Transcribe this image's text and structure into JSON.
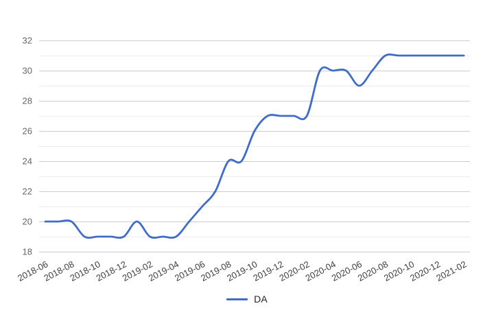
{
  "chart_data": {
    "type": "line",
    "title": "",
    "xlabel": "",
    "ylabel": "",
    "curve": "smooth",
    "grid": "on",
    "legend_position": "bottom-center",
    "ylim": [
      18,
      32
    ],
    "yticks_major": [
      18,
      20,
      22,
      24,
      26,
      28,
      30,
      32
    ],
    "yticks_minor": [
      19,
      21,
      23,
      25,
      27,
      29,
      31
    ],
    "xtick_labels": [
      "2018-06",
      "2018-08",
      "2018-10",
      "2018-12",
      "2019-02",
      "2019-04",
      "2019-06",
      "2019-08",
      "2019-10",
      "2019-12",
      "2020-02",
      "2020-04",
      "2020-06",
      "2020-08",
      "2020-10",
      "2020-12",
      "2021-02"
    ],
    "x": [
      "2018-06",
      "2018-07",
      "2018-08",
      "2018-09",
      "2018-10",
      "2018-11",
      "2018-12",
      "2019-01",
      "2019-02",
      "2019-03",
      "2019-04",
      "2019-05",
      "2019-06",
      "2019-07",
      "2019-08",
      "2019-09",
      "2019-10",
      "2019-11",
      "2019-12",
      "2020-01",
      "2020-02",
      "2020-03",
      "2020-04",
      "2020-05",
      "2020-06",
      "2020-07",
      "2020-08",
      "2020-09",
      "2020-10",
      "2020-11",
      "2020-12",
      "2021-01",
      "2021-02"
    ],
    "series": [
      {
        "name": "DA",
        "color": "#3E6CC8",
        "values": [
          20,
          20,
          20,
          19,
          19,
          19,
          19,
          20,
          19,
          19,
          19,
          20,
          21,
          22,
          24,
          24,
          26,
          27,
          27,
          27,
          27,
          30,
          30,
          30,
          29,
          30,
          31,
          31,
          31,
          31,
          31,
          31,
          31
        ]
      }
    ],
    "colors": {
      "grid_major": "#cccccc",
      "grid_minor": "#ebebeb",
      "ytick_text": "#666666",
      "xtick_text": "#3f3f3f",
      "legend_text": "#222222"
    }
  }
}
